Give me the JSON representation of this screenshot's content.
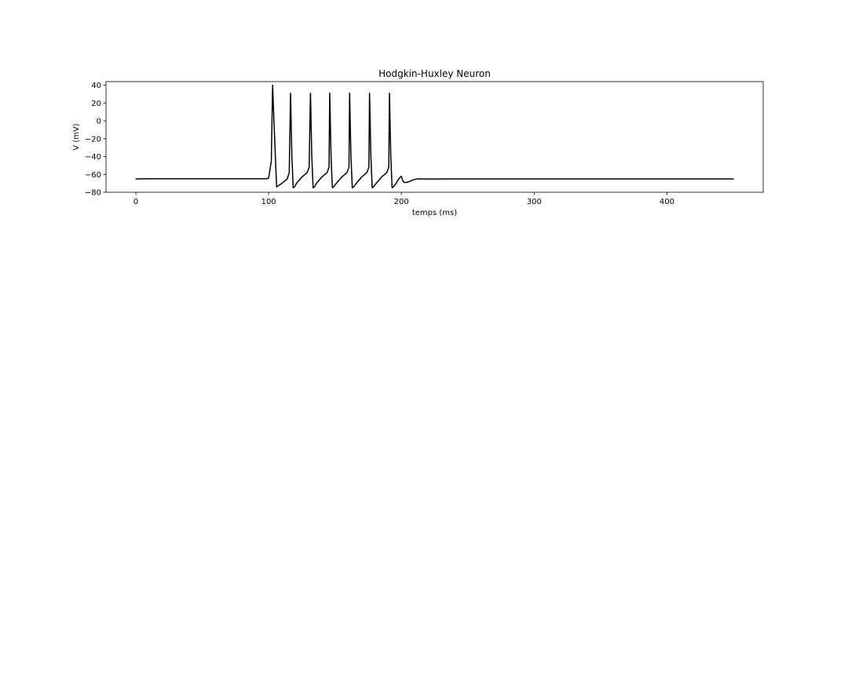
{
  "chart_data": {
    "type": "line",
    "title": "Hodgkin-Huxley Neuron",
    "xlabel": "temps (ms)",
    "ylabel": "V (mV)",
    "xlim": [
      -22.5,
      472.5
    ],
    "ylim": [
      -80,
      44
    ],
    "xticks": [
      0,
      100,
      200,
      300,
      400
    ],
    "yticks": [
      -80,
      -60,
      -40,
      -20,
      0,
      20,
      40
    ],
    "line_color": "#000000",
    "grid": false,
    "legend": "none",
    "series": [
      {
        "x": [
          0,
          10,
          50,
          95,
          99,
          100,
          101,
          102,
          103,
          104,
          106,
          110,
          114,
          115.5,
          116.5,
          117.5,
          118.5,
          119.5,
          121,
          125,
          129,
          130.5,
          131.5,
          132.5,
          133.5,
          134.5,
          136,
          140,
          144,
          145.5,
          146,
          147,
          148,
          149,
          151,
          155,
          159,
          160.5,
          161,
          162,
          163,
          164,
          166,
          170,
          174,
          175.5,
          176,
          177,
          178,
          179,
          181,
          185,
          189,
          190.5,
          191,
          192,
          193,
          194,
          196,
          198,
          200,
          201,
          202,
          204,
          206,
          209,
          212,
          215,
          220,
          240,
          300,
          400,
          450
        ],
        "y": [
          -65,
          -64.8,
          -64.8,
          -64.8,
          -64.8,
          -64,
          -55,
          -45,
          40,
          0,
          -74,
          -70,
          -65,
          -58,
          31,
          -40,
          -75,
          -74,
          -70,
          -63,
          -58,
          -52,
          31,
          -40,
          -75,
          -74,
          -70,
          -63,
          -58,
          -52,
          31,
          -40,
          -75,
          -74,
          -70,
          -63,
          -58,
          -52,
          31,
          -40,
          -75,
          -74,
          -70,
          -63,
          -58,
          -52,
          31,
          -40,
          -75,
          -74,
          -70,
          -63,
          -58,
          -52,
          31,
          -40,
          -75,
          -74,
          -70,
          -65,
          -62,
          -67,
          -69,
          -69,
          -68,
          -66,
          -65,
          -65,
          -65.2,
          -65,
          -65,
          -65,
          -65
        ]
      }
    ]
  }
}
